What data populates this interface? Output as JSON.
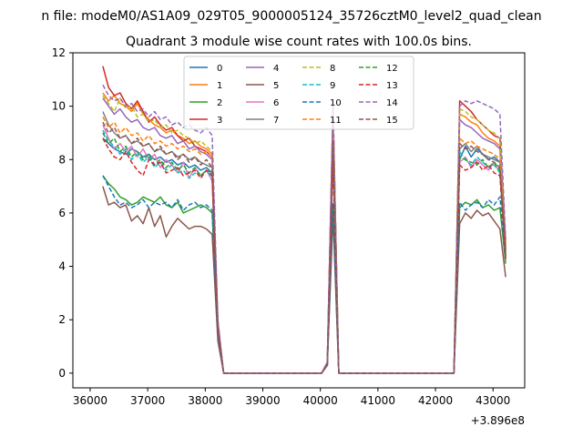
{
  "chart_data": {
    "type": "line",
    "suptitle": "n file: modeM0/AS1A09_029T05_9000005124_35726cztM0_level2_quad_clean",
    "title": "Quadrant 3 module wise count rates with 100.0s bins.",
    "xlabel": "",
    "ylabel": "",
    "x_offset_label": "+3.896e8",
    "xlim": [
      35700,
      43550
    ],
    "ylim": [
      -0.55,
      12
    ],
    "x_ticks": [
      36000,
      37000,
      38000,
      39000,
      40000,
      41000,
      42000,
      43000
    ],
    "y_ticks": [
      0,
      2,
      4,
      6,
      8,
      10,
      12
    ],
    "grid": false,
    "legend": {
      "placement": "top-center",
      "columns": 4
    },
    "x": [
      36220,
      36320,
      36420,
      36520,
      36620,
      36720,
      36820,
      36920,
      37020,
      37120,
      37220,
      37320,
      37420,
      37520,
      37620,
      37720,
      37820,
      37920,
      38020,
      38120,
      38220,
      38320,
      38420,
      38520,
      38620,
      38720,
      38820,
      38920,
      39020,
      39120,
      39220,
      39320,
      39420,
      39520,
      39620,
      39720,
      39820,
      39920,
      40020,
      40120,
      40220,
      40320,
      40420,
      40520,
      40620,
      40720,
      40820,
      40920,
      41020,
      41120,
      41220,
      41320,
      41420,
      41520,
      41620,
      41720,
      41820,
      41920,
      42020,
      42120,
      42220,
      42320,
      42420,
      42520,
      42620,
      42720,
      42820,
      42920,
      43020,
      43120,
      43220
    ],
    "series": [
      {
        "name": "0",
        "color": "#1f77b4",
        "dash": false,
        "values": [
          8.8,
          8.6,
          8.4,
          8.3,
          8.2,
          8.4,
          8.3,
          8.1,
          8.2,
          8.0,
          8.1,
          7.9,
          8.0,
          7.8,
          7.9,
          7.7,
          7.8,
          7.6,
          7.7,
          7.5,
          1.6,
          0,
          0,
          0,
          0,
          0,
          0,
          0,
          0,
          0,
          0,
          0,
          0,
          0,
          0,
          0,
          0,
          0,
          0,
          0.3,
          8.4,
          0,
          0,
          0,
          0,
          0,
          0,
          0,
          0,
          0,
          0,
          0,
          0,
          0,
          0,
          0,
          0,
          0,
          0,
          0,
          0,
          0,
          8.0,
          8.5,
          8.1,
          8.4,
          8.2,
          8.0,
          8.1,
          7.9,
          4.6
        ]
      },
      {
        "name": "1",
        "color": "#ff7f0e",
        "dash": false,
        "values": [
          10.5,
          10.2,
          10.4,
          10.1,
          10.0,
          9.8,
          10.1,
          9.7,
          9.5,
          9.3,
          9.2,
          9.0,
          9.1,
          8.9,
          8.8,
          8.6,
          8.7,
          8.5,
          8.4,
          8.2,
          1.8,
          0,
          0,
          0,
          0,
          0,
          0,
          0,
          0,
          0,
          0,
          0,
          0,
          0,
          0,
          0,
          0,
          0,
          0,
          0.4,
          9.8,
          0,
          0,
          0,
          0,
          0,
          0,
          0,
          0,
          0,
          0,
          0,
          0,
          0,
          0,
          0,
          0,
          0,
          0,
          0,
          0,
          0,
          9.7,
          9.6,
          9.4,
          9.3,
          9.0,
          8.8,
          8.7,
          8.5,
          4.8
        ]
      },
      {
        "name": "2",
        "color": "#2ca02c",
        "dash": false,
        "values": [
          7.4,
          7.1,
          6.9,
          6.6,
          6.5,
          6.3,
          6.4,
          6.6,
          6.5,
          6.4,
          6.6,
          6.3,
          6.2,
          6.4,
          6.0,
          6.1,
          6.2,
          6.3,
          6.2,
          6.0,
          1.4,
          0,
          0,
          0,
          0,
          0,
          0,
          0,
          0,
          0,
          0,
          0,
          0,
          0,
          0,
          0,
          0,
          0,
          0,
          0.3,
          6.3,
          0,
          0,
          0,
          0,
          0,
          0,
          0,
          0,
          0,
          0,
          0,
          0,
          0,
          0,
          0,
          0,
          0,
          0,
          0,
          0,
          0,
          6.2,
          6.4,
          6.3,
          6.5,
          6.2,
          6.3,
          6.1,
          6.2,
          4.1
        ]
      },
      {
        "name": "3",
        "color": "#d62728",
        "dash": false,
        "values": [
          11.5,
          10.7,
          10.4,
          10.5,
          10.1,
          9.9,
          10.2,
          9.8,
          9.4,
          9.6,
          9.3,
          9.1,
          9.2,
          8.9,
          8.7,
          8.8,
          8.5,
          8.4,
          8.3,
          8.1,
          1.9,
          0,
          0,
          0,
          0,
          0,
          0,
          0,
          0,
          0,
          0,
          0,
          0,
          0,
          0,
          0,
          0,
          0,
          0,
          0.4,
          10.0,
          0,
          0,
          0,
          0,
          0,
          0,
          0,
          0,
          0,
          0,
          0,
          0,
          0,
          0,
          0,
          0,
          0,
          0,
          0,
          0,
          0,
          10.2,
          10.0,
          9.8,
          9.5,
          9.3,
          9.1,
          8.9,
          8.8,
          4.9
        ]
      },
      {
        "name": "4",
        "color": "#9467bd",
        "dash": false,
        "values": [
          10.3,
          10.0,
          9.7,
          9.9,
          9.6,
          9.4,
          9.5,
          9.2,
          9.1,
          9.2,
          8.9,
          8.8,
          8.9,
          8.6,
          8.7,
          8.4,
          8.5,
          8.3,
          8.2,
          8.0,
          1.8,
          0,
          0,
          0,
          0,
          0,
          0,
          0,
          0,
          0,
          0,
          0,
          0,
          0,
          0,
          0,
          0,
          0,
          0,
          0.4,
          9.6,
          0,
          0,
          0,
          0,
          0,
          0,
          0,
          0,
          0,
          0,
          0,
          0,
          0,
          0,
          0,
          0,
          0,
          0,
          0,
          0,
          0,
          9.5,
          9.3,
          9.2,
          9.0,
          8.8,
          8.7,
          8.6,
          8.4,
          4.7
        ]
      },
      {
        "name": "5",
        "color": "#8c564b",
        "dash": false,
        "values": [
          7.0,
          6.3,
          6.4,
          6.2,
          6.3,
          5.7,
          5.9,
          5.6,
          6.2,
          5.5,
          5.9,
          5.1,
          5.5,
          5.8,
          5.6,
          5.4,
          5.5,
          5.5,
          5.4,
          5.2,
          1.2,
          0,
          0,
          0,
          0,
          0,
          0,
          0,
          0,
          0,
          0,
          0,
          0,
          0,
          0,
          0,
          0,
          0,
          0,
          0.3,
          5.9,
          0,
          0,
          0,
          0,
          0,
          0,
          0,
          0,
          0,
          0,
          0,
          0,
          0,
          0,
          0,
          0,
          0,
          0,
          0,
          0,
          0,
          5.6,
          6.0,
          5.8,
          6.1,
          5.9,
          6.0,
          5.7,
          5.4,
          3.6
        ]
      },
      {
        "name": "6",
        "color": "#e377c2",
        "dash": false,
        "values": [
          9.3,
          8.8,
          8.4,
          8.6,
          8.3,
          8.5,
          8.1,
          8.4,
          8.0,
          8.2,
          7.7,
          8.0,
          7.8,
          7.5,
          7.9,
          7.3,
          7.7,
          7.4,
          7.6,
          7.2,
          1.6,
          0,
          0,
          0,
          0,
          0,
          0,
          0,
          0,
          0,
          0,
          0,
          0,
          0,
          0,
          0,
          0,
          0,
          0,
          0.3,
          8.2,
          0,
          0,
          0,
          0,
          0,
          0,
          0,
          0,
          0,
          0,
          0,
          0,
          0,
          0,
          0,
          0,
          0,
          0,
          0,
          0,
          0,
          7.9,
          8.1,
          7.7,
          8.0,
          7.8,
          7.6,
          7.9,
          7.5,
          4.4
        ]
      },
      {
        "name": "7",
        "color": "#7f7f7f",
        "dash": false,
        "values": [
          9.8,
          9.3,
          9.0,
          8.8,
          8.9,
          8.6,
          8.7,
          8.5,
          8.6,
          8.3,
          8.4,
          8.2,
          8.3,
          8.1,
          8.2,
          8.0,
          8.1,
          7.9,
          7.8,
          7.7,
          1.6,
          0,
          0,
          0,
          0,
          0,
          0,
          0,
          0,
          0,
          0,
          0,
          0,
          0,
          0,
          0,
          0,
          0,
          0,
          0.3,
          8.6,
          0,
          0,
          0,
          0,
          0,
          0,
          0,
          0,
          0,
          0,
          0,
          0,
          0,
          0,
          0,
          0,
          0,
          0,
          0,
          0,
          0,
          8.4,
          8.6,
          8.3,
          8.5,
          8.2,
          8.1,
          8.0,
          7.9,
          4.6
        ]
      },
      {
        "name": "8",
        "color": "#bcbd22",
        "dash": true,
        "values": [
          10.4,
          10.1,
          9.8,
          10.3,
          9.9,
          10.0,
          9.6,
          9.7,
          9.4,
          9.5,
          9.2,
          9.3,
          9.0,
          9.1,
          8.9,
          8.8,
          8.6,
          8.7,
          8.5,
          8.3,
          1.9,
          0,
          0,
          0,
          0,
          0,
          0,
          0,
          0,
          0,
          0,
          0,
          0,
          0,
          0,
          0,
          0,
          0,
          0,
          0.4,
          9.9,
          0,
          0,
          0,
          0,
          0,
          0,
          0,
          0,
          0,
          0,
          0,
          0,
          0,
          0,
          0,
          0,
          0,
          0,
          0,
          0,
          0,
          9.9,
          9.8,
          9.6,
          9.5,
          9.3,
          9.1,
          9.0,
          8.8,
          4.9
        ]
      },
      {
        "name": "9",
        "color": "#17becf",
        "dash": true,
        "values": [
          9.1,
          8.7,
          8.5,
          8.2,
          8.4,
          8.0,
          8.2,
          7.9,
          8.1,
          7.7,
          7.9,
          7.6,
          7.8,
          7.5,
          7.6,
          7.3,
          7.5,
          7.4,
          7.6,
          7.3,
          1.6,
          0,
          0,
          0,
          0,
          0,
          0,
          0,
          0,
          0,
          0,
          0,
          0,
          0,
          0,
          0,
          0,
          0,
          0,
          0.3,
          8.1,
          0,
          0,
          0,
          0,
          0,
          0,
          0,
          0,
          0,
          0,
          0,
          0,
          0,
          0,
          0,
          0,
          0,
          0,
          0,
          0,
          0,
          8.3,
          8.0,
          7.8,
          8.1,
          7.9,
          7.7,
          7.8,
          7.5,
          4.3
        ]
      },
      {
        "name": "10",
        "color": "#1f77b4",
        "dash": true,
        "values": [
          7.4,
          7.0,
          6.6,
          6.3,
          6.4,
          6.2,
          6.3,
          6.5,
          6.2,
          6.4,
          6.3,
          6.4,
          6.2,
          6.5,
          6.1,
          6.3,
          6.4,
          6.2,
          6.3,
          6.1,
          1.4,
          0,
          0,
          0,
          0,
          0,
          0,
          0,
          0,
          0,
          0,
          0,
          0,
          0,
          0,
          0,
          0,
          0,
          0,
          0.3,
          6.4,
          0,
          0,
          0,
          0,
          0,
          0,
          0,
          0,
          0,
          0,
          0,
          0,
          0,
          0,
          0,
          0,
          0,
          0,
          0,
          0,
          0,
          6.4,
          6.1,
          6.3,
          6.4,
          6.2,
          6.5,
          6.3,
          6.6,
          4.2
        ]
      },
      {
        "name": "11",
        "color": "#ff7f0e",
        "dash": true,
        "values": [
          9.6,
          9.2,
          9.4,
          9.0,
          9.2,
          8.9,
          9.0,
          8.7,
          8.9,
          8.6,
          8.7,
          8.5,
          8.6,
          8.4,
          8.5,
          8.3,
          8.4,
          8.2,
          8.3,
          8.1,
          1.7,
          0,
          0,
          0,
          0,
          0,
          0,
          0,
          0,
          0,
          0,
          0,
          0,
          0,
          0,
          0,
          0,
          0,
          0,
          0.3,
          8.9,
          0,
          0,
          0,
          0,
          0,
          0,
          0,
          0,
          0,
          0,
          0,
          0,
          0,
          0,
          0,
          0,
          0,
          0,
          0,
          0,
          0,
          8.8,
          8.6,
          8.7,
          8.5,
          8.4,
          8.3,
          8.2,
          8.0,
          4.5
        ]
      },
      {
        "name": "12",
        "color": "#2ca02c",
        "dash": true,
        "values": [
          9.0,
          8.6,
          8.8,
          8.3,
          8.5,
          8.1,
          8.3,
          8.0,
          8.2,
          7.8,
          8.0,
          7.7,
          7.9,
          7.6,
          7.8,
          7.5,
          7.7,
          7.4,
          7.6,
          7.5,
          1.6,
          0,
          0,
          0,
          0,
          0,
          0,
          0,
          0,
          0,
          0,
          0,
          0,
          0,
          0,
          0,
          0,
          0,
          0,
          0.3,
          8.3,
          0,
          0,
          0,
          0,
          0,
          0,
          0,
          0,
          0,
          0,
          0,
          0,
          0,
          0,
          0,
          0,
          0,
          0,
          0,
          0,
          0,
          8.1,
          8.0,
          7.9,
          7.8,
          8.0,
          7.7,
          7.9,
          7.6,
          4.4
        ]
      },
      {
        "name": "13",
        "color": "#d62728",
        "dash": true,
        "values": [
          8.8,
          8.4,
          8.1,
          8.0,
          8.3,
          7.9,
          7.6,
          7.4,
          8.0,
          7.8,
          7.9,
          7.5,
          7.6,
          7.7,
          7.4,
          7.5,
          7.6,
          7.3,
          7.6,
          7.4,
          1.6,
          0,
          0,
          0,
          0,
          0,
          0,
          0,
          0,
          0,
          0,
          0,
          0,
          0,
          0,
          0,
          0,
          0,
          0,
          0.3,
          8.0,
          0,
          0,
          0,
          0,
          0,
          0,
          0,
          0,
          0,
          0,
          0,
          0,
          0,
          0,
          0,
          0,
          0,
          0,
          0,
          0,
          0,
          7.8,
          7.6,
          7.7,
          7.9,
          7.6,
          7.8,
          7.5,
          7.4,
          4.3
        ]
      },
      {
        "name": "14",
        "color": "#9467bd",
        "dash": true,
        "values": [
          10.8,
          10.4,
          10.2,
          10.3,
          10.0,
          10.1,
          9.8,
          9.9,
          9.6,
          9.8,
          9.5,
          9.6,
          9.3,
          9.4,
          9.2,
          9.3,
          9.1,
          9.0,
          9.2,
          8.9,
          2.0,
          0,
          0,
          0,
          0,
          0,
          0,
          0,
          0,
          0,
          0,
          0,
          0,
          0,
          0,
          0,
          0,
          0,
          0,
          0.4,
          10.1,
          0,
          0,
          0,
          0,
          0,
          0,
          0,
          0,
          0,
          0,
          0,
          0,
          0,
          0,
          0,
          0,
          0,
          0,
          0,
          0,
          0,
          10.0,
          10.2,
          10.1,
          10.2,
          10.1,
          10.0,
          9.9,
          9.7,
          5.0
        ]
      },
      {
        "name": "15",
        "color": "#8c564b",
        "dash": true,
        "values": [
          9.4,
          9.0,
          9.2,
          8.8,
          8.9,
          8.6,
          8.8,
          8.5,
          8.6,
          8.3,
          8.5,
          8.2,
          8.3,
          8.0,
          8.2,
          7.9,
          8.1,
          7.8,
          8.0,
          7.7,
          1.7,
          0,
          0,
          0,
          0,
          0,
          0,
          0,
          0,
          0,
          0,
          0,
          0,
          0,
          0,
          0,
          0,
          0,
          0,
          0.3,
          8.7,
          0,
          0,
          0,
          0,
          0,
          0,
          0,
          0,
          0,
          0,
          0,
          0,
          0,
          0,
          0,
          0,
          0,
          0,
          0,
          0,
          0,
          8.6,
          8.4,
          8.5,
          8.3,
          8.2,
          8.0,
          7.9,
          7.7,
          4.4
        ]
      }
    ]
  }
}
